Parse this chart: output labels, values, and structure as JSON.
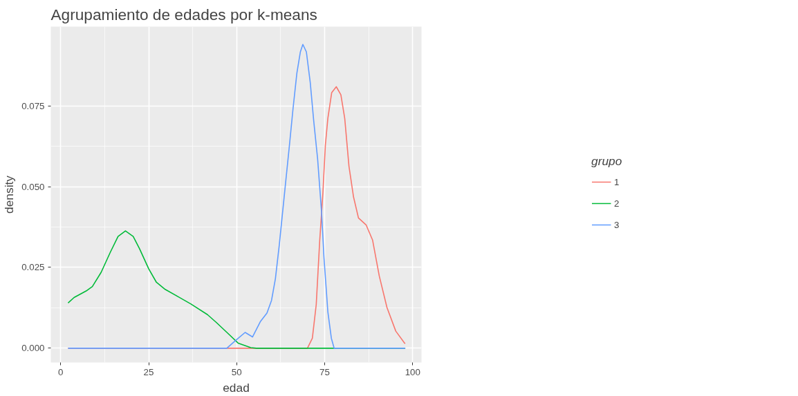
{
  "chart_data": {
    "type": "line",
    "title": "Agrupamiento de edades por k-means",
    "xlabel": "edad",
    "ylabel": "density",
    "legend_title": "grupo",
    "xlim": [
      -2.8,
      102.5
    ],
    "ylim": [
      -0.0044,
      0.0995
    ],
    "xticks": [
      0,
      25,
      50,
      75,
      100
    ],
    "yticks": [
      {
        "value": 0,
        "label": "0.000"
      },
      {
        "value": 0.025,
        "label": "0.025"
      },
      {
        "value": 0.05,
        "label": "0.050"
      },
      {
        "value": 0.075,
        "label": "0.075"
      }
    ],
    "grid": true,
    "legend": "right",
    "series": [
      {
        "name": "1",
        "color": "#f8766d",
        "x": [
          2.1,
          47.0,
          70.1,
          71.5,
          72.6,
          73.6,
          74.5,
          75.2,
          75.9,
          77.0,
          78.3,
          79.6,
          80.7,
          81.9,
          83.2,
          84.6,
          86.8,
          88.6,
          90.5,
          92.7,
          95.2,
          97.7,
          97.9
        ],
        "values": [
          0,
          0,
          0,
          0.0031,
          0.0135,
          0.0335,
          0.0481,
          0.0629,
          0.0711,
          0.0791,
          0.0809,
          0.0784,
          0.0711,
          0.0563,
          0.0468,
          0.0403,
          0.0381,
          0.0335,
          0.0224,
          0.0126,
          0.0053,
          0.0016,
          0.0015
        ]
      },
      {
        "name": "2",
        "color": "#00ba38",
        "x": [
          2.1,
          3.8,
          7.5,
          9.0,
          11.5,
          14.1,
          16.3,
          18.4,
          20.6,
          22.4,
          25.0,
          27.2,
          29.7,
          33.3,
          37.0,
          41.7,
          44.2,
          47.9,
          50.4,
          54.0,
          55.6,
          97.9
        ],
        "values": [
          0.014,
          0.0157,
          0.0179,
          0.0191,
          0.0235,
          0.0297,
          0.0346,
          0.0363,
          0.0346,
          0.0308,
          0.0246,
          0.0204,
          0.0182,
          0.016,
          0.0137,
          0.0104,
          0.008,
          0.0042,
          0.0016,
          0.0002,
          0,
          0
        ]
      },
      {
        "name": "3",
        "color": "#619cff",
        "x": [
          2.1,
          47.2,
          49.7,
          52.4,
          54.5,
          56.7,
          58.6,
          59.9,
          61.0,
          62.1,
          63.9,
          65.0,
          66.0,
          67.1,
          68.1,
          68.8,
          69.8,
          70.9,
          71.9,
          73.0,
          74.1,
          74.8,
          75.9,
          76.9,
          77.7,
          97.9
        ],
        "values": [
          0,
          0,
          0.0024,
          0.0049,
          0.0035,
          0.0082,
          0.0109,
          0.0148,
          0.0215,
          0.0319,
          0.0512,
          0.0629,
          0.074,
          0.0851,
          0.0917,
          0.094,
          0.0917,
          0.0822,
          0.0702,
          0.0585,
          0.0423,
          0.0281,
          0.0113,
          0.0031,
          0,
          0
        ]
      }
    ]
  }
}
